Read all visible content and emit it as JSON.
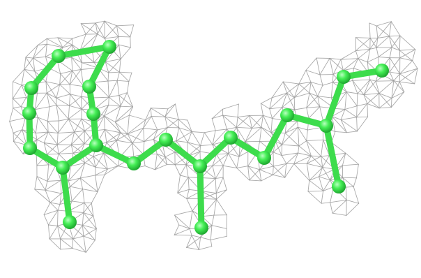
{
  "scene": {
    "subject": "molecule-with-electron-density-mesh",
    "colors": {
      "background": "#ffffff",
      "mesh": "#9a9a9a",
      "atom": "#44ee55",
      "atom_highlight": "#b9ffc0",
      "atom_shadow": "#1fa830",
      "bond": "#3ddc4c"
    },
    "atom_count": 21,
    "bond_count": 21
  }
}
